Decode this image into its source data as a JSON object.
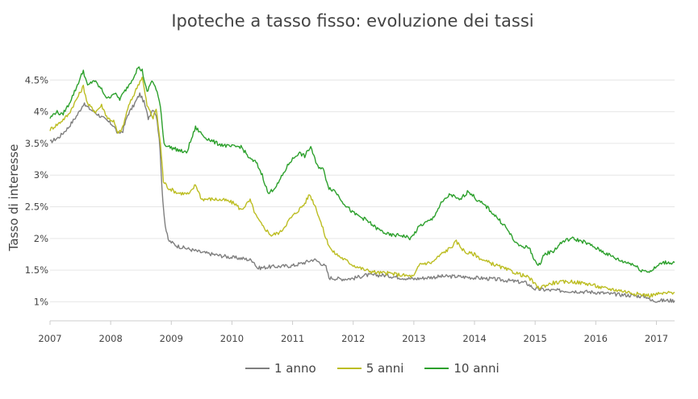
{
  "chart_data": {
    "type": "line",
    "title": "Ipoteche a tasso fisso: evoluzione dei tassi",
    "xlabel": "",
    "ylabel": "Tasso di interesse",
    "xlim": [
      2007,
      2017.3
    ],
    "ylim": [
      0.7,
      5.0
    ],
    "grid": true,
    "legend_position": "bottom",
    "x_ticks": [
      "2007",
      "2008",
      "2009",
      "2010",
      "2011",
      "2012",
      "2013",
      "2014",
      "2015",
      "2016",
      "2017"
    ],
    "y_ticks": [
      {
        "value": 1.0,
        "label": "1%"
      },
      {
        "value": 1.5,
        "label": "1.5%"
      },
      {
        "value": 2.0,
        "label": "2%"
      },
      {
        "value": 2.5,
        "label": "2.5%"
      },
      {
        "value": 3.0,
        "label": "3%"
      },
      {
        "value": 3.5,
        "label": "3.5%"
      },
      {
        "value": 4.0,
        "label": "4%"
      },
      {
        "value": 4.5,
        "label": "4.5%"
      }
    ],
    "series": [
      {
        "name": "1 anno",
        "color": "#7f7f7f",
        "points": [
          [
            2007.0,
            3.52
          ],
          [
            2007.15,
            3.6
          ],
          [
            2007.3,
            3.75
          ],
          [
            2007.45,
            3.95
          ],
          [
            2007.55,
            4.12
          ],
          [
            2007.65,
            4.05
          ],
          [
            2007.8,
            3.95
          ],
          [
            2007.95,
            3.85
          ],
          [
            2008.05,
            3.78
          ],
          [
            2008.12,
            3.65
          ],
          [
            2008.2,
            3.7
          ],
          [
            2008.28,
            3.95
          ],
          [
            2008.38,
            4.1
          ],
          [
            2008.48,
            4.28
          ],
          [
            2008.55,
            4.15
          ],
          [
            2008.62,
            3.9
          ],
          [
            2008.7,
            4.05
          ],
          [
            2008.75,
            3.95
          ],
          [
            2008.8,
            3.6
          ],
          [
            2008.86,
            2.6
          ],
          [
            2008.9,
            2.2
          ],
          [
            2008.95,
            1.97
          ],
          [
            2009.1,
            1.88
          ],
          [
            2009.3,
            1.83
          ],
          [
            2009.5,
            1.78
          ],
          [
            2009.8,
            1.73
          ],
          [
            2010.0,
            1.7
          ],
          [
            2010.2,
            1.68
          ],
          [
            2010.35,
            1.65
          ],
          [
            2010.42,
            1.53
          ],
          [
            2010.6,
            1.55
          ],
          [
            2010.8,
            1.56
          ],
          [
            2011.0,
            1.57
          ],
          [
            2011.2,
            1.62
          ],
          [
            2011.35,
            1.67
          ],
          [
            2011.45,
            1.62
          ],
          [
            2011.55,
            1.55
          ],
          [
            2011.6,
            1.38
          ],
          [
            2011.8,
            1.36
          ],
          [
            2012.0,
            1.37
          ],
          [
            2012.2,
            1.42
          ],
          [
            2012.5,
            1.42
          ],
          [
            2012.8,
            1.38
          ],
          [
            2013.0,
            1.36
          ],
          [
            2013.2,
            1.38
          ],
          [
            2013.45,
            1.4
          ],
          [
            2013.7,
            1.4
          ],
          [
            2014.0,
            1.38
          ],
          [
            2014.3,
            1.36
          ],
          [
            2014.6,
            1.33
          ],
          [
            2014.85,
            1.3
          ],
          [
            2015.0,
            1.2
          ],
          [
            2015.3,
            1.18
          ],
          [
            2015.6,
            1.17
          ],
          [
            2016.0,
            1.15
          ],
          [
            2016.3,
            1.12
          ],
          [
            2016.6,
            1.1
          ],
          [
            2016.85,
            1.08
          ],
          [
            2016.9,
            1.02
          ],
          [
            2017.3,
            1.02
          ]
        ]
      },
      {
        "name": "5 anni",
        "color": "#bcbd22",
        "points": [
          [
            2007.0,
            3.72
          ],
          [
            2007.15,
            3.82
          ],
          [
            2007.3,
            3.95
          ],
          [
            2007.45,
            4.22
          ],
          [
            2007.55,
            4.4
          ],
          [
            2007.62,
            4.12
          ],
          [
            2007.75,
            4.0
          ],
          [
            2007.85,
            4.1
          ],
          [
            2007.95,
            3.9
          ],
          [
            2008.05,
            3.85
          ],
          [
            2008.12,
            3.65
          ],
          [
            2008.2,
            3.75
          ],
          [
            2008.28,
            4.05
          ],
          [
            2008.35,
            4.2
          ],
          [
            2008.45,
            4.42
          ],
          [
            2008.52,
            4.55
          ],
          [
            2008.6,
            4.1
          ],
          [
            2008.7,
            3.9
          ],
          [
            2008.75,
            4.05
          ],
          [
            2008.82,
            3.5
          ],
          [
            2008.87,
            2.9
          ],
          [
            2008.95,
            2.8
          ],
          [
            2009.1,
            2.72
          ],
          [
            2009.3,
            2.7
          ],
          [
            2009.4,
            2.85
          ],
          [
            2009.5,
            2.62
          ],
          [
            2009.7,
            2.62
          ],
          [
            2009.9,
            2.6
          ],
          [
            2010.05,
            2.55
          ],
          [
            2010.15,
            2.45
          ],
          [
            2010.3,
            2.6
          ],
          [
            2010.4,
            2.35
          ],
          [
            2010.5,
            2.2
          ],
          [
            2010.65,
            2.05
          ],
          [
            2010.8,
            2.1
          ],
          [
            2010.95,
            2.3
          ],
          [
            2011.1,
            2.45
          ],
          [
            2011.2,
            2.55
          ],
          [
            2011.28,
            2.7
          ],
          [
            2011.38,
            2.5
          ],
          [
            2011.45,
            2.3
          ],
          [
            2011.55,
            2.0
          ],
          [
            2011.65,
            1.8
          ],
          [
            2011.8,
            1.7
          ],
          [
            2012.0,
            1.58
          ],
          [
            2012.2,
            1.5
          ],
          [
            2012.4,
            1.46
          ],
          [
            2012.6,
            1.45
          ],
          [
            2012.8,
            1.42
          ],
          [
            2013.0,
            1.4
          ],
          [
            2013.1,
            1.6
          ],
          [
            2013.3,
            1.62
          ],
          [
            2013.45,
            1.75
          ],
          [
            2013.6,
            1.85
          ],
          [
            2013.7,
            1.95
          ],
          [
            2013.85,
            1.78
          ],
          [
            2014.0,
            1.75
          ],
          [
            2014.15,
            1.65
          ],
          [
            2014.3,
            1.6
          ],
          [
            2014.5,
            1.52
          ],
          [
            2014.7,
            1.45
          ],
          [
            2014.9,
            1.38
          ],
          [
            2015.05,
            1.22
          ],
          [
            2015.3,
            1.3
          ],
          [
            2015.6,
            1.32
          ],
          [
            2015.9,
            1.28
          ],
          [
            2016.1,
            1.22
          ],
          [
            2016.4,
            1.18
          ],
          [
            2016.7,
            1.12
          ],
          [
            2016.9,
            1.1
          ],
          [
            2017.0,
            1.12
          ],
          [
            2017.3,
            1.15
          ]
        ]
      },
      {
        "name": "10 anni",
        "color": "#2ca02c",
        "points": [
          [
            2007.0,
            3.9
          ],
          [
            2007.1,
            4.0
          ],
          [
            2007.2,
            3.95
          ],
          [
            2007.3,
            4.1
          ],
          [
            2007.42,
            4.35
          ],
          [
            2007.55,
            4.65
          ],
          [
            2007.62,
            4.4
          ],
          [
            2007.72,
            4.5
          ],
          [
            2007.85,
            4.35
          ],
          [
            2007.95,
            4.2
          ],
          [
            2008.05,
            4.3
          ],
          [
            2008.15,
            4.2
          ],
          [
            2008.25,
            4.35
          ],
          [
            2008.35,
            4.5
          ],
          [
            2008.45,
            4.7
          ],
          [
            2008.52,
            4.65
          ],
          [
            2008.6,
            4.3
          ],
          [
            2008.68,
            4.5
          ],
          [
            2008.75,
            4.35
          ],
          [
            2008.82,
            4.1
          ],
          [
            2008.88,
            3.5
          ],
          [
            2008.95,
            3.45
          ],
          [
            2009.1,
            3.4
          ],
          [
            2009.25,
            3.35
          ],
          [
            2009.4,
            3.75
          ],
          [
            2009.55,
            3.6
          ],
          [
            2009.75,
            3.5
          ],
          [
            2009.95,
            3.45
          ],
          [
            2010.15,
            3.45
          ],
          [
            2010.3,
            3.25
          ],
          [
            2010.4,
            3.2
          ],
          [
            2010.5,
            3.0
          ],
          [
            2010.6,
            2.7
          ],
          [
            2010.75,
            2.85
          ],
          [
            2010.95,
            3.2
          ],
          [
            2011.1,
            3.35
          ],
          [
            2011.2,
            3.3
          ],
          [
            2011.3,
            3.45
          ],
          [
            2011.4,
            3.15
          ],
          [
            2011.5,
            3.1
          ],
          [
            2011.6,
            2.8
          ],
          [
            2011.7,
            2.75
          ],
          [
            2011.85,
            2.55
          ],
          [
            2012.0,
            2.4
          ],
          [
            2012.2,
            2.3
          ],
          [
            2012.4,
            2.15
          ],
          [
            2012.6,
            2.05
          ],
          [
            2012.8,
            2.05
          ],
          [
            2012.95,
            2.0
          ],
          [
            2013.1,
            2.2
          ],
          [
            2013.3,
            2.3
          ],
          [
            2013.45,
            2.55
          ],
          [
            2013.6,
            2.7
          ],
          [
            2013.75,
            2.6
          ],
          [
            2013.9,
            2.75
          ],
          [
            2014.05,
            2.6
          ],
          [
            2014.2,
            2.5
          ],
          [
            2014.35,
            2.35
          ],
          [
            2014.5,
            2.2
          ],
          [
            2014.7,
            1.9
          ],
          [
            2014.9,
            1.85
          ],
          [
            2015.05,
            1.55
          ],
          [
            2015.15,
            1.75
          ],
          [
            2015.3,
            1.8
          ],
          [
            2015.45,
            1.95
          ],
          [
            2015.6,
            2.0
          ],
          [
            2015.8,
            1.95
          ],
          [
            2016.0,
            1.85
          ],
          [
            2016.2,
            1.75
          ],
          [
            2016.4,
            1.65
          ],
          [
            2016.6,
            1.6
          ],
          [
            2016.75,
            1.5
          ],
          [
            2016.9,
            1.48
          ],
          [
            2017.0,
            1.55
          ],
          [
            2017.1,
            1.62
          ],
          [
            2017.3,
            1.62
          ]
        ]
      }
    ]
  }
}
